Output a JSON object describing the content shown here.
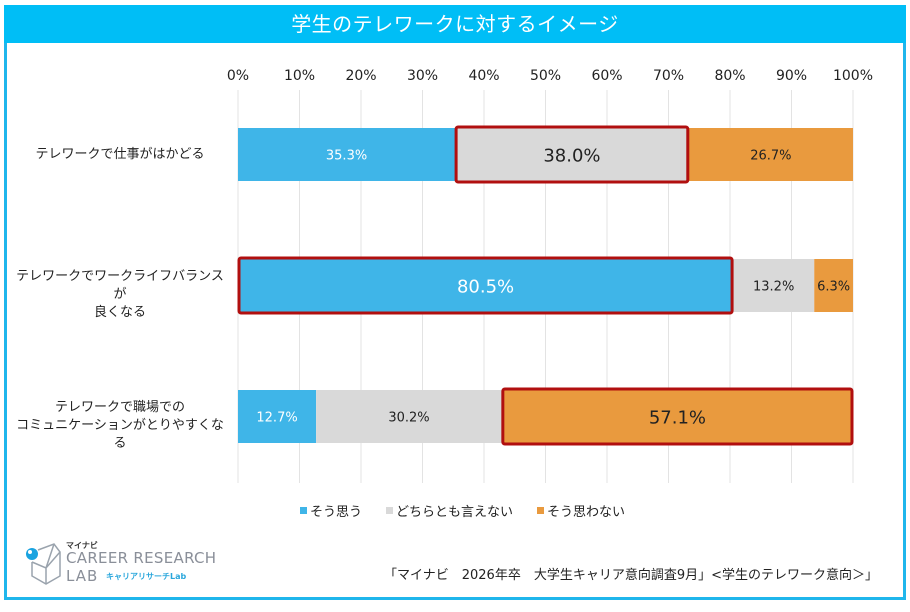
{
  "header": {
    "title": "学生のテレワークに対するイメージ"
  },
  "colors": {
    "agree": "#3fb5e8",
    "neutral": "#d9d9d9",
    "disagree": "#e99a3e",
    "highlight": "#b10f0f",
    "frame": "#00bef6"
  },
  "chart_data": {
    "type": "bar",
    "orientation": "horizontal",
    "stacked": true,
    "normalized": true,
    "title": "学生のテレワークに対するイメージ",
    "xlabel": "",
    "ylabel": "",
    "xlim": [
      0,
      100
    ],
    "x_ticks": [
      "0%",
      "10%",
      "20%",
      "30%",
      "40%",
      "50%",
      "60%",
      "70%",
      "80%",
      "90%",
      "100%"
    ],
    "grid": true,
    "legend_position": "bottom",
    "categories": [
      "テレワークで仕事がはかどる",
      "テレワークでワークライフバランスが\n良くなる",
      "テレワークで職場での\nコミュニケーションがとりやすくなる"
    ],
    "series": [
      {
        "name": "そう思う",
        "values": [
          35.3,
          80.5,
          12.7
        ],
        "labels": [
          "35.3%",
          "80.5%",
          "12.7%"
        ]
      },
      {
        "name": "どちらとも言えない",
        "values": [
          38.0,
          13.2,
          30.2
        ],
        "labels": [
          "38.0%",
          "13.2%",
          "30.2%"
        ]
      },
      {
        "name": "そう思わない",
        "values": [
          26.7,
          6.3,
          57.1
        ],
        "labels": [
          "26.7%",
          "6.3%",
          "57.1%"
        ]
      }
    ],
    "highlighted": [
      {
        "category_index": 0,
        "series_index": 1
      },
      {
        "category_index": 1,
        "series_index": 0
      },
      {
        "category_index": 2,
        "series_index": 2
      }
    ]
  },
  "logo": {
    "brand_small": "マイナビ",
    "line1": "CAREER RESEARCH",
    "line2": "LAB",
    "jp": "キャリアリサーチLab"
  },
  "source": "「マイナビ　2026年卒　大学生キャリア意向調査9月」<学生のテレワーク意向＞」"
}
